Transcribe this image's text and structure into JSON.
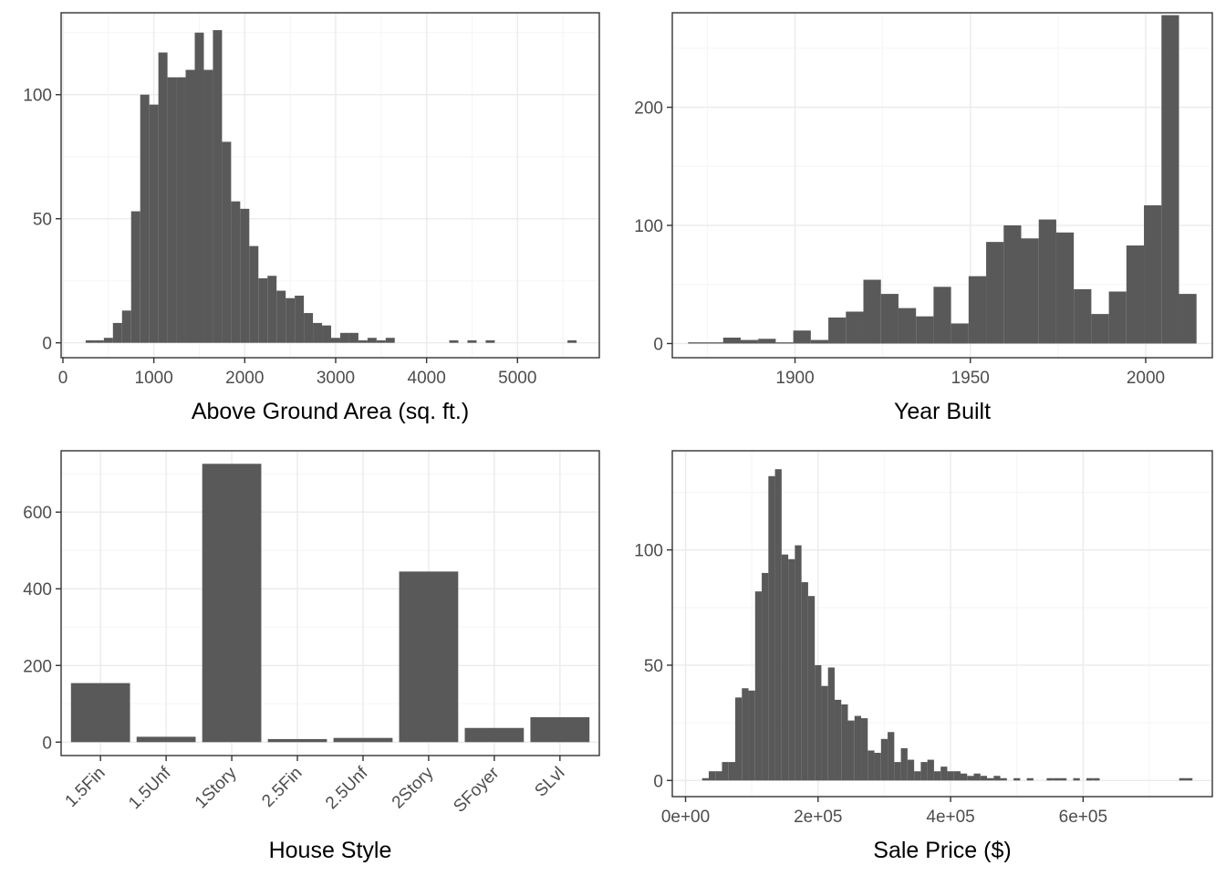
{
  "colors": {
    "bar": "#595959",
    "grid_major": "#ebebeb",
    "grid_minor": "#f5f5f5",
    "panel_border": "#333333",
    "tick_label": "#4d4d4d"
  },
  "chart_data": [
    {
      "id": "gr-liv-area",
      "type": "bar",
      "xlabel": "Above Ground Area (sq. ft.)",
      "ylabel": "",
      "xlim": [
        -20,
        5900
      ],
      "ylim": [
        -6,
        133
      ],
      "xticks": [
        0,
        1000,
        2000,
        3000,
        4000,
        5000
      ],
      "xtick_labels": [
        "0",
        "1000",
        "2000",
        "3000",
        "4000",
        "5000"
      ],
      "yticks": [
        0,
        50,
        100
      ],
      "ytick_labels": [
        "0",
        "50",
        "100"
      ],
      "bin_width": 100,
      "x": [
        300,
        400,
        500,
        600,
        700,
        800,
        900,
        1000,
        1100,
        1200,
        1300,
        1400,
        1500,
        1600,
        1700,
        1800,
        1900,
        2000,
        2100,
        2200,
        2300,
        2400,
        2500,
        2600,
        2700,
        2800,
        2900,
        3000,
        3100,
        3200,
        3300,
        3400,
        3500,
        3600,
        4300,
        4500,
        4700,
        5600
      ],
      "values": [
        1,
        1,
        2,
        8,
        13,
        53,
        100,
        96,
        117,
        107,
        107,
        110,
        125,
        110,
        126,
        81,
        57,
        54,
        39,
        26,
        27,
        21,
        18,
        19,
        12,
        8,
        7,
        2,
        4,
        4,
        1,
        2,
        1,
        2,
        1,
        1,
        1,
        1
      ]
    },
    {
      "id": "year-built",
      "type": "bar",
      "xlabel": "Year Built",
      "ylabel": "",
      "xlim": [
        1865,
        2019
      ],
      "ylim": [
        -12,
        280
      ],
      "xticks": [
        1900,
        1950,
        2000
      ],
      "xtick_labels": [
        "1900",
        "1950",
        "2000"
      ],
      "yticks": [
        0,
        100,
        200
      ],
      "ytick_labels": [
        "0",
        "100",
        "200"
      ],
      "bin_width": 5,
      "x": [
        1872,
        1877,
        1882,
        1887,
        1892,
        1897,
        1902,
        1907,
        1912,
        1917,
        1922,
        1927,
        1932,
        1937,
        1942,
        1947,
        1952,
        1957,
        1962,
        1967,
        1972,
        1977,
        1982,
        1987,
        1992,
        1997,
        2002,
        2007,
        2012
      ],
      "values": [
        1,
        1,
        5,
        3,
        4,
        1,
        11,
        3,
        22,
        27,
        54,
        42,
        30,
        23,
        48,
        17,
        57,
        86,
        100,
        89,
        105,
        94,
        46,
        25,
        44,
        83,
        117,
        278,
        42
      ]
    },
    {
      "id": "house-style",
      "type": "bar",
      "xlabel": "House Style",
      "ylabel": "",
      "categories": [
        "1.5Fin",
        "1.5Unf",
        "1Story",
        "2.5Fin",
        "2.5Unf",
        "2Story",
        "SFoyer",
        "SLvl"
      ],
      "values": [
        154,
        14,
        726,
        8,
        11,
        445,
        37,
        65
      ],
      "ylim": [
        -35,
        760
      ],
      "yticks": [
        0,
        200,
        400,
        600
      ],
      "ytick_labels": [
        "0",
        "200",
        "400",
        "600"
      ]
    },
    {
      "id": "sale-price",
      "type": "bar",
      "xlabel": "Sale Price ($)",
      "ylabel": "",
      "xlim": [
        -20000,
        795000
      ],
      "ylim": [
        -7,
        143
      ],
      "xticks": [
        0,
        200000,
        400000,
        600000
      ],
      "xtick_labels": [
        "0e+00",
        "2e+05",
        "4e+05",
        "6e+05"
      ],
      "yticks": [
        0,
        50,
        100
      ],
      "ytick_labels": [
        "0",
        "50",
        "100"
      ],
      "bin_width": 10000,
      "x": [
        30000,
        40000,
        50000,
        60000,
        70000,
        80000,
        90000,
        100000,
        110000,
        120000,
        130000,
        140000,
        150000,
        160000,
        170000,
        180000,
        190000,
        200000,
        210000,
        220000,
        230000,
        240000,
        250000,
        260000,
        270000,
        280000,
        290000,
        300000,
        310000,
        320000,
        330000,
        340000,
        350000,
        360000,
        370000,
        380000,
        390000,
        400000,
        410000,
        420000,
        430000,
        440000,
        450000,
        460000,
        470000,
        480000,
        500000,
        520000,
        550000,
        560000,
        570000,
        590000,
        610000,
        620000,
        750000,
        760000
      ],
      "values": [
        1,
        4,
        4,
        8,
        8,
        36,
        40,
        39,
        82,
        90,
        132,
        135,
        98,
        96,
        102,
        86,
        80,
        50,
        41,
        49,
        35,
        33,
        26,
        28,
        27,
        13,
        12,
        18,
        21,
        8,
        14,
        9,
        4,
        8,
        9,
        4,
        6,
        4,
        4,
        3,
        2,
        3,
        2,
        1,
        2,
        1,
        1,
        1,
        1,
        1,
        1,
        1,
        1,
        1,
        1,
        1
      ]
    }
  ]
}
